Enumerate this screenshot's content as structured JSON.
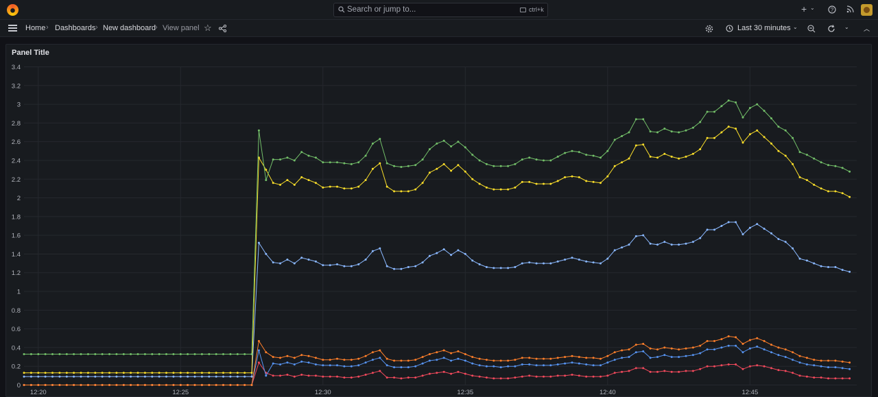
{
  "topbar": {
    "search_placeholder": "Search or jump to...",
    "shortcut": "ctrl+k",
    "icons": [
      "grafana-logo-icon",
      "search-icon",
      "keyboard-icon",
      "plus-icon",
      "help-icon",
      "news-icon",
      "avatar"
    ]
  },
  "breadcrumb": {
    "home": "Home",
    "dashboards": "Dashboards",
    "dashboard": "New dashboard",
    "current": "View panel"
  },
  "toolbar": {
    "time_range": "Last 30 minutes"
  },
  "panel": {
    "title": "Panel Title"
  },
  "chart_data": {
    "type": "line",
    "title": "Panel Title",
    "ylim": [
      0,
      3.4
    ],
    "ytick_labels": [
      "0",
      "0.2",
      "0.4",
      "0.6",
      "0.8",
      "1",
      "1.2",
      "1.4",
      "1.6",
      "1.8",
      "2",
      "2.2",
      "2.4",
      "2.6",
      "2.8",
      "3",
      "3.2",
      "3.4"
    ],
    "xtick_labels": [
      "12:20",
      "12:25",
      "12:30",
      "12:35",
      "12:40",
      "12:45"
    ],
    "x_start": "12:19:30",
    "x_end": "12:48:45",
    "grid": true,
    "legend": "none",
    "series": [
      {
        "color": "#73bf69",
        "key": "green",
        "flat_value": 0.33,
        "values": [
          2.72,
          2.19,
          2.41,
          2.41,
          2.43,
          2.4,
          2.49,
          2.45,
          2.43,
          2.38,
          2.38,
          2.38,
          2.37,
          2.36,
          2.38,
          2.45,
          2.58,
          2.63,
          2.37,
          2.34,
          2.33,
          2.34,
          2.35,
          2.41,
          2.52,
          2.58,
          2.61,
          2.55,
          2.6,
          2.54,
          2.46,
          2.4,
          2.36,
          2.34,
          2.34,
          2.34,
          2.36,
          2.41,
          2.43,
          2.41,
          2.4,
          2.4,
          2.44,
          2.48,
          2.5,
          2.49,
          2.46,
          2.45,
          2.43,
          2.5,
          2.62,
          2.66,
          2.7,
          2.84,
          2.84,
          2.71,
          2.7,
          2.74,
          2.71,
          2.7,
          2.72,
          2.75,
          2.81,
          2.92,
          2.92,
          2.98,
          3.04,
          3.02,
          2.86,
          2.96,
          3.0,
          2.93,
          2.85,
          2.76,
          2.72,
          2.64,
          2.49,
          2.46,
          2.42,
          2.38,
          2.35,
          2.34,
          2.32,
          2.28
        ]
      },
      {
        "color": "#fade2a",
        "key": "yellow",
        "flat_value": 0.13,
        "values": [
          2.43,
          2.3,
          2.16,
          2.14,
          2.19,
          2.14,
          2.22,
          2.19,
          2.16,
          2.11,
          2.12,
          2.12,
          2.1,
          2.1,
          2.12,
          2.19,
          2.31,
          2.37,
          2.12,
          2.07,
          2.07,
          2.07,
          2.09,
          2.16,
          2.27,
          2.31,
          2.36,
          2.29,
          2.35,
          2.28,
          2.2,
          2.15,
          2.11,
          2.09,
          2.09,
          2.09,
          2.11,
          2.17,
          2.17,
          2.15,
          2.15,
          2.15,
          2.18,
          2.22,
          2.23,
          2.22,
          2.18,
          2.17,
          2.16,
          2.23,
          2.34,
          2.38,
          2.42,
          2.56,
          2.57,
          2.44,
          2.43,
          2.47,
          2.44,
          2.42,
          2.44,
          2.47,
          2.52,
          2.64,
          2.64,
          2.7,
          2.76,
          2.74,
          2.59,
          2.68,
          2.72,
          2.65,
          2.58,
          2.5,
          2.45,
          2.36,
          2.22,
          2.19,
          2.14,
          2.1,
          2.07,
          2.07,
          2.05,
          2.01
        ]
      },
      {
        "color": "#8ab8ff",
        "key": "blue-high",
        "flat_value": 0.09,
        "values": [
          1.52,
          1.4,
          1.31,
          1.3,
          1.34,
          1.3,
          1.36,
          1.34,
          1.32,
          1.28,
          1.28,
          1.29,
          1.27,
          1.27,
          1.29,
          1.34,
          1.43,
          1.46,
          1.27,
          1.24,
          1.24,
          1.26,
          1.27,
          1.31,
          1.38,
          1.41,
          1.45,
          1.39,
          1.44,
          1.4,
          1.33,
          1.29,
          1.26,
          1.25,
          1.25,
          1.25,
          1.26,
          1.3,
          1.31,
          1.3,
          1.3,
          1.3,
          1.32,
          1.34,
          1.36,
          1.34,
          1.32,
          1.31,
          1.3,
          1.35,
          1.44,
          1.47,
          1.5,
          1.59,
          1.6,
          1.51,
          1.5,
          1.53,
          1.5,
          1.5,
          1.51,
          1.53,
          1.57,
          1.66,
          1.66,
          1.7,
          1.74,
          1.74,
          1.61,
          1.68,
          1.72,
          1.67,
          1.62,
          1.56,
          1.53,
          1.46,
          1.35,
          1.33,
          1.3,
          1.27,
          1.26,
          1.26,
          1.23,
          1.21
        ]
      },
      {
        "color": "#ff7f2a",
        "key": "orange",
        "flat_value": 0.0,
        "values": [
          0.47,
          0.35,
          0.3,
          0.29,
          0.31,
          0.29,
          0.32,
          0.31,
          0.29,
          0.27,
          0.27,
          0.28,
          0.27,
          0.27,
          0.28,
          0.31,
          0.35,
          0.37,
          0.28,
          0.26,
          0.26,
          0.26,
          0.27,
          0.3,
          0.33,
          0.35,
          0.37,
          0.34,
          0.36,
          0.33,
          0.3,
          0.28,
          0.27,
          0.26,
          0.26,
          0.26,
          0.27,
          0.29,
          0.29,
          0.28,
          0.28,
          0.28,
          0.29,
          0.3,
          0.31,
          0.3,
          0.29,
          0.29,
          0.28,
          0.31,
          0.35,
          0.37,
          0.38,
          0.43,
          0.44,
          0.39,
          0.38,
          0.4,
          0.39,
          0.38,
          0.39,
          0.4,
          0.42,
          0.47,
          0.47,
          0.49,
          0.52,
          0.51,
          0.44,
          0.48,
          0.5,
          0.47,
          0.43,
          0.4,
          0.38,
          0.35,
          0.31,
          0.29,
          0.27,
          0.26,
          0.26,
          0.26,
          0.25,
          0.24
        ]
      },
      {
        "color": "#5794f2",
        "key": "blue-low",
        "flat_value": 0.0,
        "values": [
          0.37,
          0.1,
          0.23,
          0.22,
          0.24,
          0.22,
          0.25,
          0.24,
          0.22,
          0.21,
          0.21,
          0.21,
          0.2,
          0.2,
          0.21,
          0.24,
          0.27,
          0.29,
          0.21,
          0.19,
          0.19,
          0.19,
          0.2,
          0.23,
          0.26,
          0.27,
          0.29,
          0.26,
          0.28,
          0.26,
          0.23,
          0.21,
          0.2,
          0.2,
          0.19,
          0.2,
          0.2,
          0.22,
          0.22,
          0.21,
          0.21,
          0.21,
          0.22,
          0.23,
          0.24,
          0.23,
          0.22,
          0.21,
          0.21,
          0.24,
          0.27,
          0.29,
          0.3,
          0.35,
          0.36,
          0.29,
          0.3,
          0.32,
          0.3,
          0.3,
          0.31,
          0.32,
          0.34,
          0.38,
          0.38,
          0.4,
          0.42,
          0.42,
          0.35,
          0.39,
          0.41,
          0.38,
          0.35,
          0.32,
          0.3,
          0.27,
          0.24,
          0.22,
          0.21,
          0.2,
          0.19,
          0.19,
          0.18,
          0.17
        ]
      },
      {
        "color": "#f2495c",
        "key": "red",
        "flat_value": 0.0,
        "values": [
          0.24,
          0.13,
          0.1,
          0.1,
          0.11,
          0.09,
          0.11,
          0.1,
          0.1,
          0.09,
          0.09,
          0.09,
          0.08,
          0.08,
          0.09,
          0.11,
          0.13,
          0.15,
          0.08,
          0.08,
          0.07,
          0.08,
          0.08,
          0.1,
          0.12,
          0.13,
          0.14,
          0.12,
          0.14,
          0.12,
          0.1,
          0.09,
          0.08,
          0.07,
          0.07,
          0.07,
          0.08,
          0.09,
          0.1,
          0.09,
          0.09,
          0.09,
          0.1,
          0.1,
          0.11,
          0.1,
          0.09,
          0.09,
          0.09,
          0.1,
          0.13,
          0.14,
          0.15,
          0.18,
          0.18,
          0.14,
          0.14,
          0.15,
          0.14,
          0.14,
          0.15,
          0.15,
          0.17,
          0.2,
          0.2,
          0.21,
          0.22,
          0.22,
          0.17,
          0.2,
          0.21,
          0.2,
          0.18,
          0.16,
          0.15,
          0.13,
          0.1,
          0.09,
          0.08,
          0.08,
          0.07,
          0.07,
          0.07,
          0.07
        ]
      }
    ]
  }
}
